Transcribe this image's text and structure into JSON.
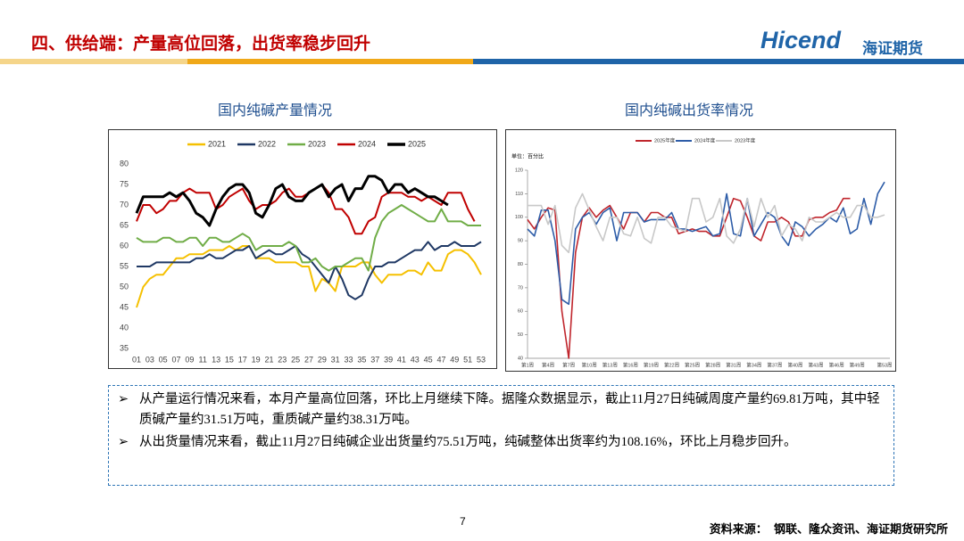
{
  "header": {
    "title": "四、供给端：产量高位回落，出货率稳步回升",
    "logo": "Hicend",
    "company": "海证期货"
  },
  "chart_data": [
    {
      "type": "line",
      "title": "国内纯碱产量情况",
      "categories": [
        "01",
        null,
        "03",
        null,
        "05",
        null,
        "07",
        null,
        "09",
        null,
        "11",
        null,
        "13",
        null,
        "15",
        null,
        "17",
        null,
        "19",
        null,
        "21",
        null,
        "23",
        null,
        "25",
        null,
        "27",
        null,
        "29",
        null,
        "31",
        null,
        "33",
        null,
        "35",
        null,
        "37",
        null,
        "39",
        null,
        "41",
        null,
        "43",
        null,
        "45",
        null,
        "47",
        null,
        "49",
        null,
        "51",
        null,
        "53"
      ],
      "ylim": [
        35,
        80
      ],
      "yticks": [
        35,
        40,
        45,
        50,
        55,
        60,
        65,
        70,
        75,
        80
      ],
      "grid": false,
      "legend": "top",
      "series": [
        {
          "name": "2021",
          "color": "#f5c000",
          "values": [
            45,
            50,
            52,
            53,
            53,
            55,
            57,
            57,
            58,
            58,
            58,
            59,
            59,
            59,
            60,
            59,
            60,
            60,
            57,
            57,
            57,
            56,
            56,
            56,
            56,
            55,
            55,
            49,
            52,
            51,
            49,
            55,
            55,
            55,
            56,
            56,
            53,
            51,
            53,
            53,
            53,
            54,
            54,
            53,
            56,
            54,
            54,
            58,
            59,
            59,
            58,
            56,
            53
          ]
        },
        {
          "name": "2022",
          "color": "#1f3864",
          "values": [
            55,
            55,
            55,
            56,
            56,
            56,
            56,
            56,
            56,
            57,
            57,
            58,
            57,
            57,
            58,
            59,
            59,
            60,
            57,
            58,
            59,
            58,
            58,
            59,
            60,
            58,
            57,
            55,
            53,
            51,
            55,
            52,
            48,
            47,
            48,
            52,
            55,
            55,
            56,
            56,
            57,
            58,
            59,
            59,
            61,
            59,
            60,
            60,
            61,
            60,
            60,
            60,
            61
          ]
        },
        {
          "name": "2023",
          "color": "#70ad47",
          "values": [
            62,
            61,
            61,
            61,
            62,
            62,
            61,
            61,
            62,
            62,
            60,
            62,
            62,
            61,
            61,
            62,
            63,
            62,
            59,
            60,
            60,
            60,
            60,
            61,
            60,
            56,
            56,
            57,
            55,
            54,
            55,
            55,
            56,
            57,
            57,
            54,
            62,
            66,
            68,
            69,
            70,
            69,
            68,
            67,
            66,
            66,
            69,
            66,
            66,
            66,
            65,
            65,
            65
          ]
        },
        {
          "name": "2024",
          "color": "#c00000",
          "values": [
            66,
            70,
            70,
            68,
            69,
            71,
            71,
            73,
            74,
            73,
            73,
            73,
            69,
            70,
            72,
            73,
            74,
            71,
            69,
            70,
            70,
            71,
            73,
            74,
            72,
            72,
            73,
            74,
            75,
            73,
            69,
            69,
            67,
            63,
            63,
            66,
            67,
            72,
            73,
            73,
            73,
            72,
            72,
            71,
            72,
            71,
            70,
            73,
            73,
            73,
            69,
            66,
            null
          ]
        },
        {
          "name": "2025",
          "color": "#000000",
          "values": [
            68,
            72,
            72,
            72,
            72,
            73,
            72,
            73,
            71,
            68,
            67,
            65,
            69,
            72,
            74,
            75,
            75,
            73,
            68,
            67,
            70,
            74,
            75,
            72,
            71,
            71,
            73,
            74,
            75,
            72,
            74,
            75,
            71,
            74,
            74,
            77,
            77,
            76,
            73,
            75,
            75,
            73,
            74,
            73,
            72,
            72,
            71,
            70,
            null,
            null,
            null,
            null,
            null
          ]
        }
      ]
    },
    {
      "type": "line",
      "title": "国内纯碱出货率情况",
      "unit_label": "单位：百分比",
      "categories": [
        "第1周",
        null,
        null,
        "第4周",
        null,
        null,
        "第7周",
        null,
        null,
        "第10周",
        null,
        null,
        "第13周",
        null,
        null,
        "第16周",
        null,
        null,
        "第19周",
        null,
        null,
        "第22周",
        null,
        null,
        "第25周",
        null,
        null,
        "第28周",
        null,
        null,
        "第31周",
        null,
        null,
        "第34周",
        null,
        null,
        "第37周",
        null,
        null,
        "第40周",
        null,
        null,
        "第43周",
        null,
        null,
        "第46周",
        null,
        null,
        "第49周",
        null,
        null,
        null,
        "第53周"
      ],
      "ylim": [
        40,
        120
      ],
      "yticks": [
        40,
        50,
        60,
        70,
        80,
        90,
        100,
        110,
        120
      ],
      "grid": false,
      "legend": "top",
      "series": [
        {
          "name": "2025年度",
          "color": "#c0262d",
          "values": [
            99,
            95,
            100,
            104,
            103,
            60,
            40,
            85,
            100,
            104,
            100,
            103,
            105,
            100,
            95,
            102,
            102,
            98,
            102,
            102,
            100,
            100,
            93,
            94,
            95,
            94,
            94,
            92,
            92,
            100,
            108,
            107,
            100,
            92,
            90,
            98,
            98,
            100,
            98,
            92,
            92,
            99,
            100,
            100,
            102,
            103,
            108,
            108,
            null,
            null,
            null,
            null,
            null
          ]
        },
        {
          "name": "2024年度",
          "color": "#2e5da8",
          "values": [
            95,
            92,
            103,
            103,
            90,
            65,
            63,
            95,
            100,
            102,
            97,
            102,
            104,
            90,
            102,
            102,
            102,
            98,
            99,
            99,
            99,
            102,
            95,
            95,
            94,
            95,
            96,
            92,
            93,
            110,
            93,
            92,
            108,
            92,
            97,
            102,
            100,
            92,
            88,
            98,
            96,
            92,
            95,
            97,
            100,
            98,
            104,
            93,
            95,
            108,
            97,
            110,
            115
          ]
        },
        {
          "name": "2023年度",
          "color": "#c8c8c8",
          "values": [
            105,
            105,
            105,
            97,
            105,
            88,
            85,
            104,
            110,
            103,
            96,
            90,
            100,
            100,
            93,
            92,
            100,
            91,
            89,
            100,
            100,
            96,
            95,
            94,
            108,
            108,
            98,
            100,
            108,
            92,
            89,
            95,
            108,
            96,
            108,
            100,
            105,
            92,
            97,
            95,
            90,
            100,
            98,
            98,
            100,
            102,
            100,
            100,
            105,
            105,
            100,
            100,
            101
          ]
        }
      ]
    }
  ],
  "bullets": [
    "从产量运行情况来看，本月产量高位回落，环比上月继续下降。据隆众数据显示，截止11月27日纯碱周度产量约69.81万吨，其中轻质碱产量约31.51万吨，重质碱产量约38.31万吨。",
    "从出货量情况来看，截止11月27日纯碱企业出货量约75.51万吨，纯碱整体出货率约为108.16%，环比上月稳步回升。"
  ],
  "footer": {
    "page": "7",
    "source": "资料来源：  钢联、隆众资讯、海证期货研究所"
  }
}
